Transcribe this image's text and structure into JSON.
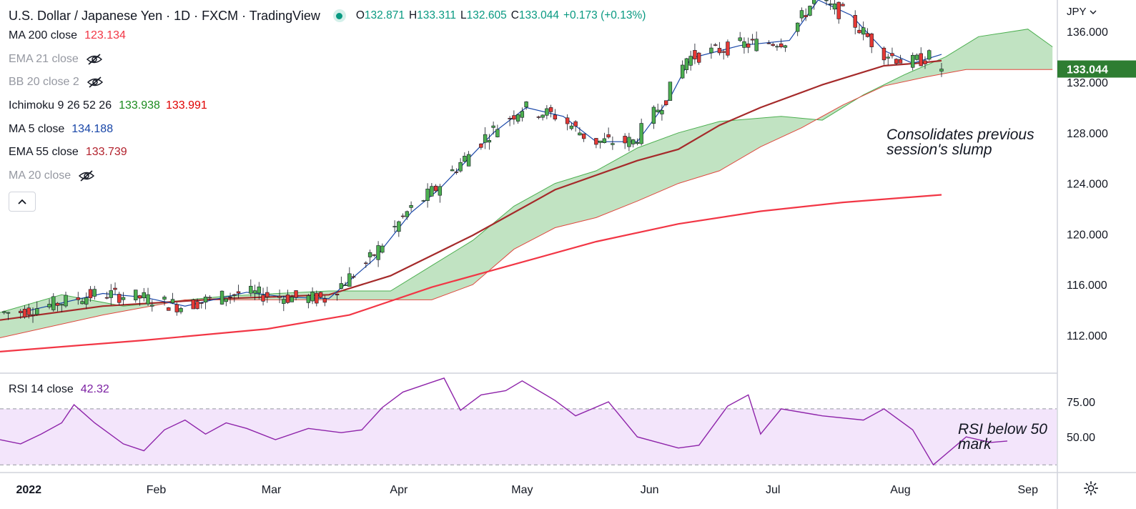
{
  "header": {
    "title": "U.S. Dollar / Japanese Yen · 1D · FXCM · TradingView",
    "open_label": "O",
    "open": "132.871",
    "high_label": "H",
    "high": "133.311",
    "low_label": "L",
    "low": "132.605",
    "close_label": "C",
    "close": "133.044",
    "change": "+0.173 (+0.13%)",
    "currency": "JPY"
  },
  "indicators": [
    {
      "name": "MA 200 close",
      "value": "123.134",
      "color": "#f23645",
      "hidden": false
    },
    {
      "name": "EMA 21 close",
      "value": "",
      "color": "#9598a1",
      "hidden": true
    },
    {
      "name": "BB 20 close 2",
      "value": "",
      "color": "#9598a1",
      "hidden": true
    },
    {
      "name": "Ichimoku 9 26 52 26",
      "value": "133.938",
      "value2": "133.991",
      "color": "#1b8a1e",
      "color2": "#e00000",
      "hidden": false
    },
    {
      "name": "MA 5 close",
      "value": "134.188",
      "color": "#1846a8",
      "hidden": false
    },
    {
      "name": "EMA 55 close",
      "value": "133.739",
      "color": "#b2212c",
      "hidden": false
    },
    {
      "name": "MA 20 close",
      "value": "",
      "color": "#9598a1",
      "hidden": true
    }
  ],
  "rsi_legend": {
    "name": "RSI 14 close",
    "value": "42.32",
    "color": "#7b1fa2"
  },
  "annotations": {
    "price_note_line1": "Consolidates previous",
    "price_note_line2": "session's slump",
    "rsi_note_line1": "RSI below 50",
    "rsi_note_line2": "mark"
  },
  "price_tag": {
    "value": "133.044",
    "color": "#2e7d32"
  },
  "icons": [
    "eye-crossed-icon",
    "chevron-up-icon",
    "chevron-down-icon",
    "gear-icon",
    "live-dot-icon"
  ],
  "chart_data": {
    "type": "candlestick",
    "title": "U.S. Dollar / Japanese Yen · 1D · FXCM",
    "price_axis": {
      "ticks": [
        "136.000",
        "132.000",
        "128.000",
        "124.000",
        "120.000",
        "116.000",
        "112.000"
      ],
      "range": [
        109.0,
        138.5
      ]
    },
    "rsi_axis": {
      "ticks": [
        "75.00",
        "50.00"
      ],
      "range": [
        25,
        95
      ],
      "band": [
        30,
        70
      ]
    },
    "time_axis": {
      "labels": [
        "2022",
        "Feb",
        "Mar",
        "Apr",
        "May",
        "Jun",
        "Jul",
        "Aug",
        "Sep"
      ],
      "label_days": [
        2,
        33,
        61,
        92,
        122,
        153,
        183,
        214,
        245
      ],
      "range_days": [
        -5,
        252
      ]
    },
    "ma5_close": [
      [
        0,
        113.8
      ],
      [
        20,
        115.3
      ],
      [
        30,
        115.0
      ],
      [
        40,
        114.3
      ],
      [
        55,
        115.4
      ],
      [
        65,
        115.0
      ],
      [
        75,
        114.9
      ],
      [
        86,
        118.0
      ],
      [
        95,
        121.7
      ],
      [
        102,
        123.6
      ],
      [
        115,
        128.0
      ],
      [
        123,
        130.0
      ],
      [
        132,
        129.3
      ],
      [
        140,
        127.3
      ],
      [
        150,
        127.3
      ],
      [
        158,
        130.8
      ],
      [
        163,
        133.9
      ],
      [
        175,
        134.9
      ],
      [
        187,
        135.3
      ],
      [
        194,
        138.5
      ],
      [
        202,
        137.3
      ],
      [
        210,
        134.5
      ],
      [
        217,
        133.5
      ],
      [
        224,
        134.2
      ]
    ],
    "ema55_close": [
      [
        -5,
        113.2
      ],
      [
        20,
        114.3
      ],
      [
        50,
        114.9
      ],
      [
        75,
        115.2
      ],
      [
        90,
        116.7
      ],
      [
        110,
        119.9
      ],
      [
        130,
        123.5
      ],
      [
        150,
        125.8
      ],
      [
        160,
        126.7
      ],
      [
        170,
        128.6
      ],
      [
        180,
        130.0
      ],
      [
        195,
        131.8
      ],
      [
        210,
        133.3
      ],
      [
        218,
        133.5
      ],
      [
        224,
        133.7
      ]
    ],
    "ma200_close": [
      [
        -5,
        110.7
      ],
      [
        30,
        111.6
      ],
      [
        60,
        112.5
      ],
      [
        80,
        113.6
      ],
      [
        100,
        115.8
      ],
      [
        120,
        117.6
      ],
      [
        140,
        119.4
      ],
      [
        160,
        120.8
      ],
      [
        180,
        121.8
      ],
      [
        200,
        122.5
      ],
      [
        224,
        123.1
      ]
    ],
    "ichimoku_span_a": [
      [
        -5,
        113.8
      ],
      [
        10,
        115.2
      ],
      [
        25,
        114.3
      ],
      [
        50,
        115.1
      ],
      [
        75,
        115.5
      ],
      [
        90,
        115.5
      ],
      [
        100,
        117.5
      ],
      [
        110,
        119.5
      ],
      [
        120,
        122.2
      ],
      [
        130,
        124.0
      ],
      [
        140,
        125.0
      ],
      [
        150,
        126.8
      ],
      [
        160,
        128.0
      ],
      [
        170,
        128.9
      ],
      [
        185,
        129.3
      ],
      [
        195,
        129.0
      ],
      [
        205,
        131.0
      ],
      [
        215,
        132.6
      ],
      [
        225,
        134.0
      ],
      [
        233,
        135.6
      ],
      [
        245,
        136.2
      ],
      [
        251,
        134.8
      ]
    ],
    "ichimoku_span_b": [
      [
        -5,
        111.8
      ],
      [
        20,
        113.6
      ],
      [
        40,
        114.8
      ],
      [
        100,
        114.8
      ],
      [
        110,
        116.0
      ],
      [
        120,
        118.8
      ],
      [
        130,
        120.5
      ],
      [
        140,
        121.3
      ],
      [
        150,
        122.6
      ],
      [
        160,
        124.0
      ],
      [
        170,
        125.0
      ],
      [
        180,
        126.9
      ],
      [
        190,
        128.4
      ],
      [
        200,
        130.2
      ],
      [
        210,
        131.7
      ],
      [
        220,
        132.4
      ],
      [
        230,
        133.0
      ],
      [
        251,
        133.0
      ]
    ],
    "rsi": [
      [
        -5,
        48
      ],
      [
        0,
        45
      ],
      [
        5,
        52
      ],
      [
        10,
        60
      ],
      [
        13,
        73
      ],
      [
        18,
        60
      ],
      [
        25,
        45
      ],
      [
        30,
        40
      ],
      [
        35,
        55
      ],
      [
        40,
        62
      ],
      [
        45,
        52
      ],
      [
        50,
        60
      ],
      [
        55,
        56
      ],
      [
        62,
        48
      ],
      [
        70,
        56
      ],
      [
        78,
        53
      ],
      [
        83,
        55
      ],
      [
        88,
        71
      ],
      [
        93,
        82
      ],
      [
        100,
        89
      ],
      [
        103,
        92
      ],
      [
        107,
        69
      ],
      [
        112,
        80
      ],
      [
        118,
        83
      ],
      [
        122,
        90
      ],
      [
        130,
        76
      ],
      [
        135,
        65
      ],
      [
        143,
        75
      ],
      [
        150,
        50
      ],
      [
        160,
        42
      ],
      [
        165,
        44
      ],
      [
        172,
        72
      ],
      [
        177,
        80
      ],
      [
        180,
        52
      ],
      [
        185,
        70
      ],
      [
        195,
        65
      ],
      [
        205,
        62
      ],
      [
        210,
        70
      ],
      [
        217,
        55
      ],
      [
        222,
        30
      ],
      [
        230,
        50
      ],
      [
        236,
        46
      ],
      [
        240,
        47
      ]
    ],
    "candles_summary": "Daily OHLC from Jan to mid-Aug 2022; last close 133.044"
  }
}
